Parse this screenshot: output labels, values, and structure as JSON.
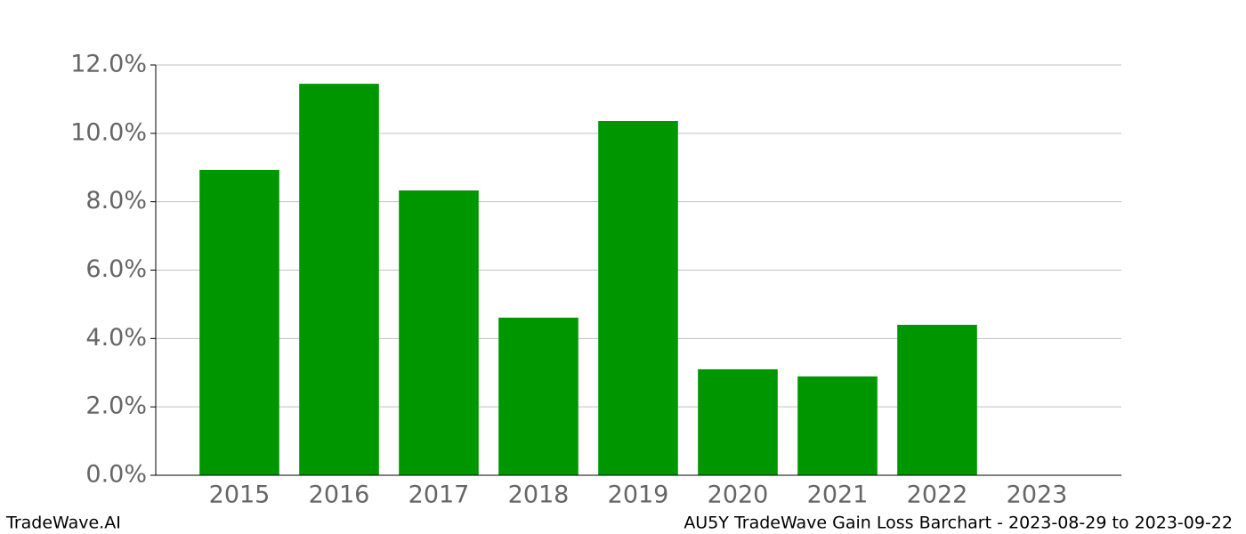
{
  "chart_data": {
    "type": "bar",
    "title": "AU5Y TradeWave Gain Loss Barchart - 2023-08-29 to 2023-09-22",
    "watermark": "TradeWave.AI",
    "categories": [
      "2015",
      "2016",
      "2017",
      "2018",
      "2019",
      "2020",
      "2021",
      "2022",
      "2023"
    ],
    "values": [
      8.93,
      11.45,
      8.33,
      4.61,
      10.36,
      3.1,
      2.89,
      4.4,
      0
    ],
    "color": "#009600",
    "ylim": [
      0,
      12
    ],
    "yticks": [
      {
        "value": 0,
        "label": "0.0%"
      },
      {
        "value": 2,
        "label": "2.0%"
      },
      {
        "value": 4,
        "label": "4.0%"
      },
      {
        "value": 6,
        "label": "6.0%"
      },
      {
        "value": 8,
        "label": "8.0%"
      },
      {
        "value": 10,
        "label": "10.0%"
      },
      {
        "value": 12,
        "label": "12.0%"
      }
    ],
    "grid": true
  }
}
